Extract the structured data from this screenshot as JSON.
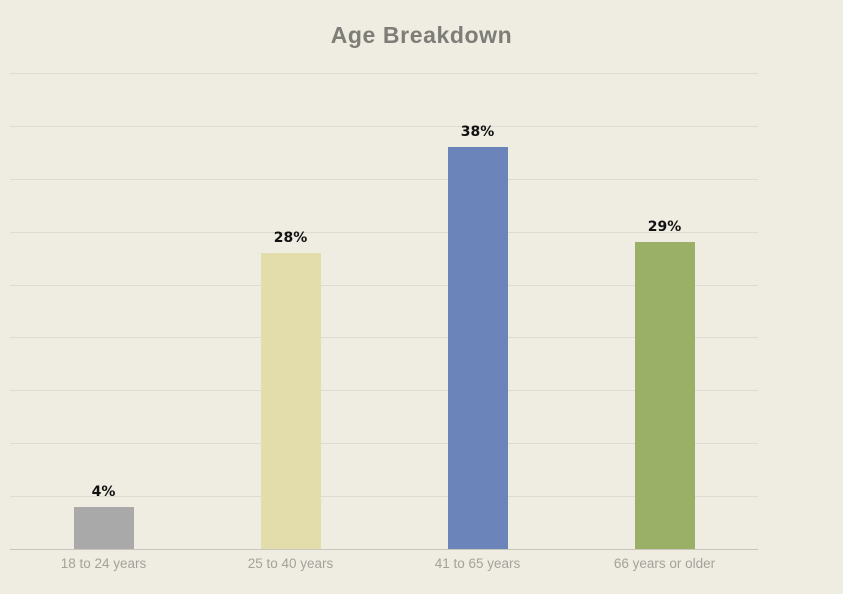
{
  "page": {
    "background": "#ffffff",
    "canvas_background": "#efede1"
  },
  "chart_data": {
    "type": "bar",
    "title": "Age Breakdown",
    "categories": [
      "18 to 24 years",
      "25 to 40 years",
      "41 to 65 years",
      "66 years or older"
    ],
    "values": [
      4,
      28,
      38,
      29
    ],
    "value_labels": [
      "4%",
      "28%",
      "38%",
      "29%"
    ],
    "bar_colors": [
      "#a9a9a9",
      "#e3ddab",
      "#6b85ba",
      "#9ab067"
    ],
    "xlabel": "",
    "ylabel": "",
    "ylim": [
      0,
      45
    ],
    "gridline_step": 5,
    "grid": "horizontal",
    "legend": "none",
    "y_tick_labels_visible": false,
    "colors": {
      "title_text": "#7e7d77",
      "category_label_text": "#a3a29a",
      "value_label_text": "#111111",
      "gridline": "#dddbd2",
      "axis_line": "#c9c7bd"
    }
  }
}
